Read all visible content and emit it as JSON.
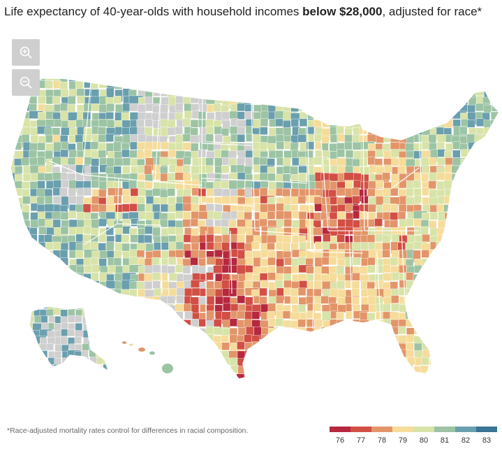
{
  "title": {
    "prefix": "Life expectancy of 40-year-olds with household incomes ",
    "bold": "below $28,000",
    "suffix": ", adjusted for race*"
  },
  "zoom": {
    "in_icon": "zoom-in-icon",
    "out_icon": "zoom-out-icon"
  },
  "footnote": "*Race-adjusted mortality rates control for differences in racial composition.",
  "legend": {
    "colors": [
      "#b5283e",
      "#d14f45",
      "#e3956a",
      "#f6dc9a",
      "#d8e3a8",
      "#9cc4a4",
      "#6a9fae",
      "#3a7393"
    ],
    "labels": [
      "76",
      "77",
      "78",
      "79",
      "80",
      "81",
      "82",
      "83"
    ]
  },
  "map": {
    "no_data_color": "#cfcfcf",
    "regions": [
      "contiguous-us",
      "alaska",
      "hawaii"
    ]
  }
}
